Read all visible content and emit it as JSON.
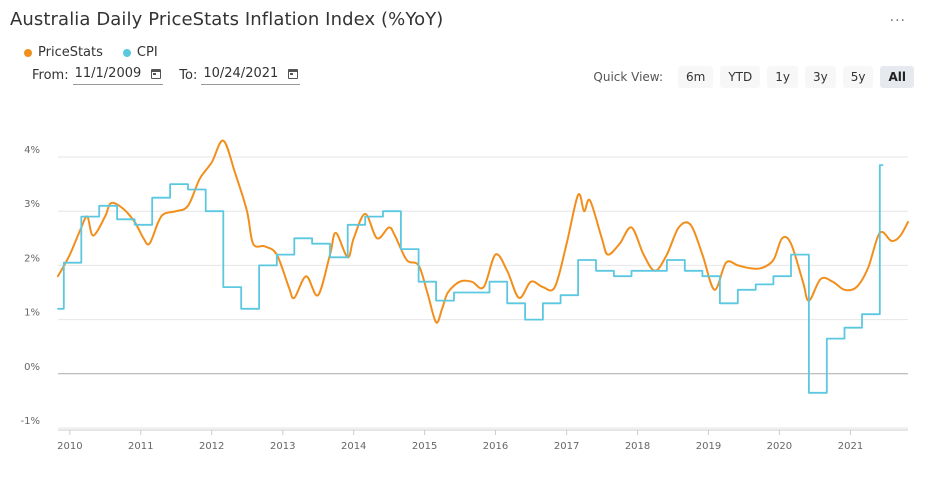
{
  "header": {
    "title": "Australia Daily PriceStats Inflation Index (%YoY)",
    "menu_icon": "more-dots-icon"
  },
  "legend": [
    {
      "label": "PriceStats",
      "color": "#f28f1c"
    },
    {
      "label": "CPI",
      "color": "#5bc8e0"
    }
  ],
  "range": {
    "from_label": "From:",
    "from_value": "11/1/2009",
    "to_label": "To:",
    "to_value": "10/24/2021"
  },
  "quick_view": {
    "label": "Quick View:",
    "buttons": [
      "6m",
      "YTD",
      "1y",
      "3y",
      "5y",
      "All"
    ],
    "active": "All"
  },
  "chart_data": {
    "type": "line",
    "title": "Australia Daily PriceStats Inflation Index (%YoY)",
    "xlabel": "",
    "ylabel": "",
    "xlim": [
      "2009-11-01",
      "2021-10-24"
    ],
    "ylim": [
      -1,
      4
    ],
    "y_ticks": [
      -1,
      0,
      1,
      2,
      3,
      4
    ],
    "y_tick_labels": [
      "-1%",
      "0%",
      "1%",
      "2%",
      "3%",
      "4%"
    ],
    "x_tick_labels": [
      "2010",
      "2011",
      "2012",
      "2013",
      "2014",
      "2015",
      "2016",
      "2017",
      "2018",
      "2019",
      "2020",
      "2021"
    ],
    "grid": true,
    "legend_position": "top-left",
    "series": [
      {
        "name": "PriceStats",
        "color": "#f28f1c",
        "style": "line",
        "points": [
          [
            "2009-11-01",
            1.8
          ],
          [
            "2010-01-01",
            2.2
          ],
          [
            "2010-03-01",
            2.7
          ],
          [
            "2010-04-01",
            2.9
          ],
          [
            "2010-05-01",
            2.55
          ],
          [
            "2010-07-01",
            2.9
          ],
          [
            "2010-08-01",
            3.15
          ],
          [
            "2010-10-01",
            3.05
          ],
          [
            "2010-12-01",
            2.8
          ],
          [
            "2011-01-15",
            2.5
          ],
          [
            "2011-02-15",
            2.4
          ],
          [
            "2011-04-01",
            2.8
          ],
          [
            "2011-05-01",
            2.95
          ],
          [
            "2011-07-01",
            3.0
          ],
          [
            "2011-09-01",
            3.1
          ],
          [
            "2011-11-01",
            3.6
          ],
          [
            "2012-01-01",
            3.9
          ],
          [
            "2012-03-01",
            4.3
          ],
          [
            "2012-05-01",
            3.7
          ],
          [
            "2012-07-01",
            3.0
          ],
          [
            "2012-08-01",
            2.4
          ],
          [
            "2012-10-01",
            2.35
          ],
          [
            "2012-12-01",
            2.2
          ],
          [
            "2013-02-01",
            1.6
          ],
          [
            "2013-03-01",
            1.4
          ],
          [
            "2013-05-01",
            1.8
          ],
          [
            "2013-07-01",
            1.45
          ],
          [
            "2013-09-01",
            2.2
          ],
          [
            "2013-10-01",
            2.6
          ],
          [
            "2013-12-01",
            2.15
          ],
          [
            "2014-01-01",
            2.5
          ],
          [
            "2014-03-01",
            2.95
          ],
          [
            "2014-05-01",
            2.5
          ],
          [
            "2014-07-01",
            2.7
          ],
          [
            "2014-08-01",
            2.55
          ],
          [
            "2014-10-01",
            2.1
          ],
          [
            "2014-12-01",
            2.0
          ],
          [
            "2015-01-15",
            1.5
          ],
          [
            "2015-03-01",
            0.95
          ],
          [
            "2015-04-01",
            1.2
          ],
          [
            "2015-05-01",
            1.5
          ],
          [
            "2015-07-01",
            1.7
          ],
          [
            "2015-09-01",
            1.7
          ],
          [
            "2015-11-01",
            1.6
          ],
          [
            "2016-01-01",
            2.2
          ],
          [
            "2016-03-01",
            1.9
          ],
          [
            "2016-05-01",
            1.4
          ],
          [
            "2016-07-01",
            1.7
          ],
          [
            "2016-09-01",
            1.6
          ],
          [
            "2016-11-01",
            1.6
          ],
          [
            "2017-01-01",
            2.4
          ],
          [
            "2017-03-01",
            3.3
          ],
          [
            "2017-04-01",
            3.0
          ],
          [
            "2017-05-01",
            3.2
          ],
          [
            "2017-07-01",
            2.5
          ],
          [
            "2017-08-01",
            2.2
          ],
          [
            "2017-10-01",
            2.4
          ],
          [
            "2017-12-01",
            2.7
          ],
          [
            "2018-02-01",
            2.2
          ],
          [
            "2018-04-01",
            1.9
          ],
          [
            "2018-06-01",
            2.2
          ],
          [
            "2018-08-01",
            2.7
          ],
          [
            "2018-10-01",
            2.75
          ],
          [
            "2018-12-01",
            2.2
          ],
          [
            "2019-02-01",
            1.55
          ],
          [
            "2019-04-01",
            2.05
          ],
          [
            "2019-06-01",
            2.0
          ],
          [
            "2019-08-01",
            1.95
          ],
          [
            "2019-10-01",
            1.95
          ],
          [
            "2019-12-01",
            2.1
          ],
          [
            "2020-01-15",
            2.5
          ],
          [
            "2020-03-01",
            2.4
          ],
          [
            "2020-05-01",
            1.7
          ],
          [
            "2020-06-01",
            1.35
          ],
          [
            "2020-08-01",
            1.75
          ],
          [
            "2020-10-01",
            1.7
          ],
          [
            "2020-12-01",
            1.55
          ],
          [
            "2021-02-01",
            1.6
          ],
          [
            "2021-04-01",
            1.95
          ],
          [
            "2021-06-01",
            2.6
          ],
          [
            "2021-08-01",
            2.45
          ],
          [
            "2021-09-15",
            2.55
          ],
          [
            "2021-10-24",
            2.8
          ]
        ]
      },
      {
        "name": "CPI",
        "color": "#5bc8e0",
        "style": "step",
        "points": [
          [
            "2009-11-01",
            1.2
          ],
          [
            "2009-12-01",
            2.05
          ],
          [
            "2010-03-01",
            2.9
          ],
          [
            "2010-06-01",
            3.1
          ],
          [
            "2010-09-01",
            2.85
          ],
          [
            "2010-12-01",
            2.75
          ],
          [
            "2011-03-01",
            3.25
          ],
          [
            "2011-06-01",
            3.5
          ],
          [
            "2011-09-01",
            3.4
          ],
          [
            "2011-12-01",
            3.0
          ],
          [
            "2012-03-01",
            1.6
          ],
          [
            "2012-06-01",
            1.2
          ],
          [
            "2012-09-01",
            2.0
          ],
          [
            "2012-12-01",
            2.2
          ],
          [
            "2013-03-01",
            2.5
          ],
          [
            "2013-06-01",
            2.4
          ],
          [
            "2013-09-01",
            2.15
          ],
          [
            "2013-12-01",
            2.75
          ],
          [
            "2014-03-01",
            2.9
          ],
          [
            "2014-06-01",
            3.0
          ],
          [
            "2014-09-01",
            2.3
          ],
          [
            "2014-12-01",
            1.7
          ],
          [
            "2015-03-01",
            1.35
          ],
          [
            "2015-06-01",
            1.5
          ],
          [
            "2015-09-01",
            1.5
          ],
          [
            "2015-12-01",
            1.7
          ],
          [
            "2016-03-01",
            1.3
          ],
          [
            "2016-06-01",
            1.0
          ],
          [
            "2016-09-01",
            1.3
          ],
          [
            "2016-12-01",
            1.45
          ],
          [
            "2017-03-01",
            2.1
          ],
          [
            "2017-06-01",
            1.9
          ],
          [
            "2017-09-01",
            1.8
          ],
          [
            "2017-12-01",
            1.9
          ],
          [
            "2018-03-01",
            1.9
          ],
          [
            "2018-06-01",
            2.1
          ],
          [
            "2018-09-01",
            1.9
          ],
          [
            "2018-12-01",
            1.8
          ],
          [
            "2019-03-01",
            1.3
          ],
          [
            "2019-06-01",
            1.55
          ],
          [
            "2019-09-01",
            1.65
          ],
          [
            "2019-12-01",
            1.8
          ],
          [
            "2020-03-01",
            2.2
          ],
          [
            "2020-06-01",
            -0.35
          ],
          [
            "2020-09-01",
            0.65
          ],
          [
            "2020-12-01",
            0.85
          ],
          [
            "2021-03-01",
            1.1
          ],
          [
            "2021-06-01",
            3.85
          ],
          [
            "2021-06-15",
            3.85
          ]
        ]
      }
    ]
  }
}
